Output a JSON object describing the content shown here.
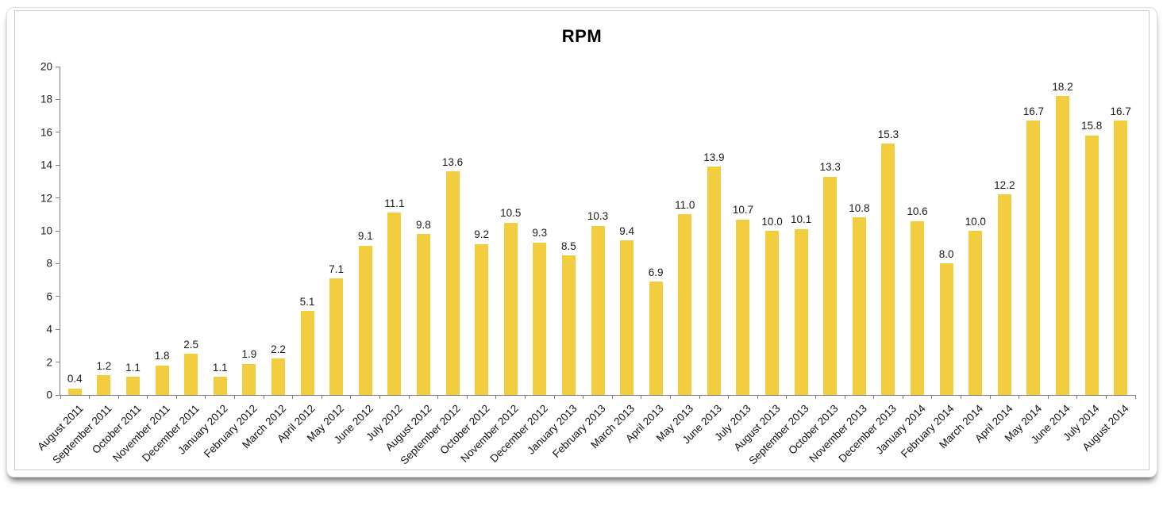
{
  "chart_data": {
    "type": "bar",
    "title": "RPM",
    "categories": [
      "August 2011",
      "September 2011",
      "October 2011",
      "November 2011",
      "December 2011",
      "January 2012",
      "February 2012",
      "March 2012",
      "April 2012",
      "May 2012",
      "June 2012",
      "July 2012",
      "August 2012",
      "September 2012",
      "October 2012",
      "November 2012",
      "December 2012",
      "January 2013",
      "February 2013",
      "March 2013",
      "April 2013",
      "May 2013",
      "June 2013",
      "July 2013",
      "August 2013",
      "September 2013",
      "October 2013",
      "November 2013",
      "December 2013",
      "January 2014",
      "February 2014",
      "March 2014",
      "April 2014",
      "May 2014",
      "June 2014",
      "July 2014",
      "August 2014"
    ],
    "values": [
      0.4,
      1.2,
      1.1,
      1.8,
      2.5,
      1.1,
      1.9,
      2.2,
      5.1,
      7.1,
      9.1,
      11.1,
      9.8,
      13.6,
      9.2,
      10.5,
      9.3,
      8.5,
      10.3,
      9.4,
      6.9,
      11.0,
      13.9,
      10.7,
      10.0,
      10.1,
      13.3,
      10.8,
      15.3,
      10.6,
      8.0,
      10.0,
      12.2,
      16.7,
      18.2,
      15.8,
      16.7
    ],
    "xlabel": "",
    "ylabel": "",
    "ylim": [
      0,
      20
    ],
    "yticks": [
      0,
      2,
      4,
      6,
      8,
      10,
      12,
      14,
      16,
      18,
      20
    ],
    "value_label_decimals": 1,
    "grid": false,
    "legend": false,
    "bar_color": "#F1CD3F",
    "axis_color": "#808080",
    "text_color": "#1a1a1a"
  }
}
